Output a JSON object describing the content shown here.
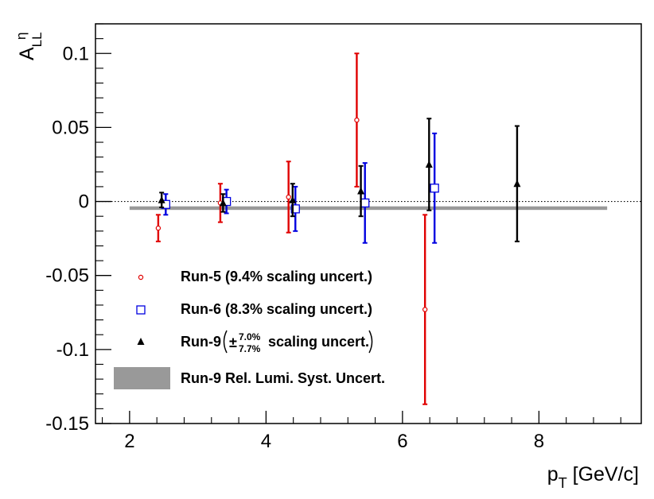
{
  "chart_data": {
    "type": "scatter",
    "xlabel": "p_T [GeV/c]",
    "ylabel": "A_LL^η",
    "xlim": [
      1.5,
      9.5
    ],
    "ylim": [
      -0.15,
      0.12
    ],
    "x_ticks": [
      "2",
      "4",
      "6",
      "8"
    ],
    "y_ticks": [
      "-0.15",
      "-0.1",
      "-0.05",
      "0",
      "0.05",
      "0.1"
    ],
    "series": [
      {
        "name": "Run-5 (9.4% scaling uncert.)",
        "marker": "open-circle",
        "color": "#e00000",
        "points": [
          {
            "x": 2.42,
            "y": -0.018,
            "err": 0.009
          },
          {
            "x": 3.33,
            "y": -0.001,
            "err": 0.013
          },
          {
            "x": 4.33,
            "y": 0.003,
            "err": 0.024
          },
          {
            "x": 5.33,
            "y": 0.055,
            "err": 0.045
          },
          {
            "x": 6.33,
            "y": -0.073,
            "err": 0.064
          }
        ]
      },
      {
        "name": "Run-6 (8.3% scaling uncert.)",
        "marker": "open-square",
        "color": "#0000e0",
        "points": [
          {
            "x": 2.53,
            "y": -0.002,
            "err": 0.007
          },
          {
            "x": 3.42,
            "y": 0.0,
            "err": 0.008
          },
          {
            "x": 4.43,
            "y": -0.005,
            "err": 0.015
          },
          {
            "x": 5.45,
            "y": -0.001,
            "err": 0.027
          },
          {
            "x": 6.47,
            "y": 0.009,
            "err": 0.037
          }
        ]
      },
      {
        "name": "Run-9",
        "marker": "filled-triangle",
        "color": "#000000",
        "points": [
          {
            "x": 2.47,
            "y": 0.001,
            "err": 0.005
          },
          {
            "x": 3.37,
            "y": -0.001,
            "err": 0.006
          },
          {
            "x": 4.39,
            "y": 0.001,
            "err": 0.011
          },
          {
            "x": 5.39,
            "y": 0.007,
            "err": 0.017
          },
          {
            "x": 6.39,
            "y": 0.025,
            "err": 0.031
          },
          {
            "x": 7.68,
            "y": 0.012,
            "err": 0.039
          }
        ]
      }
    ],
    "systematic_band": {
      "name": "Run-9 Rel. Lumi. Syst. Uncert.",
      "color": "#999999",
      "x": [
        2.0,
        9.0
      ],
      "y": -0.0045,
      "half_width": 0.0012
    },
    "reference_line": {
      "y": 0,
      "style": "dotted"
    },
    "legend": {
      "placement": "lower-left",
      "entries": [
        {
          "text": "Run-5 (9.4% scaling uncert.)"
        },
        {
          "text": "Run-6 (8.3% scaling uncert.)"
        },
        {
          "prefix": "Run-9 ",
          "pm": "±",
          "sup": "7.0%",
          "sub": "7.7%",
          "suffix": " scaling uncert."
        },
        {
          "text": "Run-9 Rel. Lumi. Syst. Uncert."
        }
      ]
    },
    "grid": false
  }
}
